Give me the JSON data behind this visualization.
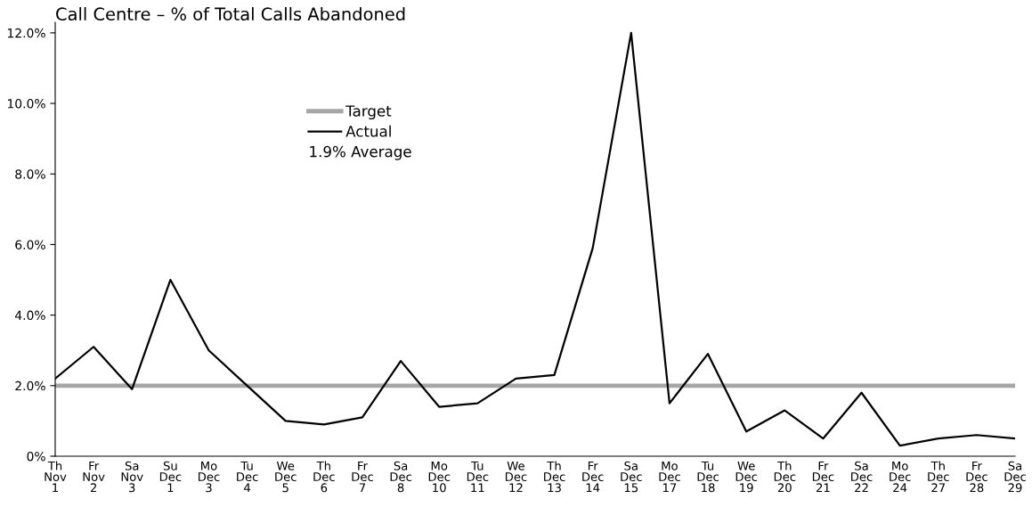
{
  "chart_data": {
    "type": "line",
    "title": "Call Centre – % of Total Calls Abandoned",
    "categories": [
      "Th\nNov\n1",
      "Fr\nNov\n2",
      "Sa\nNov\n3",
      "Su\nDec\n1",
      "Mo\nDec\n3",
      "Tu\nDec\n4",
      "We\nDec\n5",
      "Th\nDec\n6",
      "Fr\nDec\n7",
      "Sa\nDec\n8",
      "Mo\nDec\n10",
      "Tu\nDec\n11",
      "We\nDec\n12",
      "Th\nDec\n13",
      "Fr\nDec\n14",
      "Sa\nDec\n15",
      "Mo\nDec\n17",
      "Tu\nDec\n18",
      "We\nDec\n19",
      "Th\nDec\n20",
      "Fr\nDec\n21",
      "Sa\nDec\n22",
      "Mo\nDec\n24",
      "Th\nDec\n27",
      "Fr\nDec\n28",
      "Sa\nDec\n29"
    ],
    "series": [
      {
        "name": "Actual",
        "color": "#000000",
        "values": [
          2.2,
          3.1,
          1.9,
          5.0,
          3.0,
          2.0,
          1.0,
          0.9,
          1.1,
          2.7,
          1.4,
          1.5,
          2.2,
          2.3,
          5.9,
          12.0,
          1.5,
          2.9,
          0.7,
          1.3,
          0.5,
          1.8,
          0.3,
          0.5,
          0.6,
          0.5
        ]
      }
    ],
    "ref_lines": [
      {
        "axis": "y",
        "value": 2.0,
        "label": "Target",
        "color": "#a6a6a6"
      }
    ],
    "annotations": [
      "1.9% Average"
    ],
    "ylim": [
      0,
      12.3
    ],
    "yticks": [
      {
        "value": 0,
        "label": "0%"
      },
      {
        "value": 2,
        "label": "2.0%"
      },
      {
        "value": 4,
        "label": "4.0%"
      },
      {
        "value": 6,
        "label": "6.0%"
      },
      {
        "value": 8,
        "label": "8.0%"
      },
      {
        "value": 10,
        "label": "10.0%"
      },
      {
        "value": 12,
        "label": "12.0%"
      }
    ],
    "grid": false,
    "legend": "top left",
    "marker": "none",
    "line_style": "solid"
  }
}
